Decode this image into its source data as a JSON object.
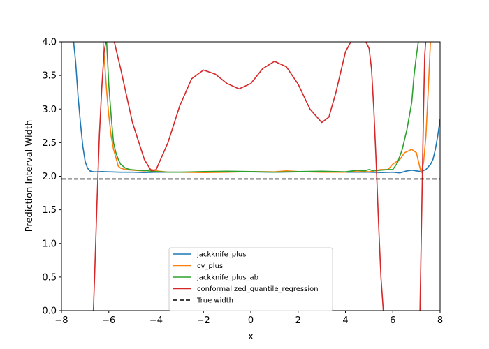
{
  "chart_data": {
    "type": "line",
    "title": "",
    "xlabel": "x",
    "ylabel": "Prediction Interval Width",
    "xlim": [
      -8,
      8
    ],
    "ylim": [
      0,
      4
    ],
    "xticks": [
      "−8",
      "−6",
      "−4",
      "−2",
      "0",
      "2",
      "4",
      "6",
      "8"
    ],
    "xtick_values": [
      -8,
      -6,
      -4,
      -2,
      0,
      2,
      4,
      6,
      8
    ],
    "yticks": [
      "0.0",
      "0.5",
      "1.0",
      "1.5",
      "2.0",
      "2.5",
      "3.0",
      "3.5",
      "4.0"
    ],
    "ytick_values": [
      0,
      0.5,
      1.0,
      1.5,
      2.0,
      2.5,
      3.0,
      3.5,
      4.0
    ],
    "grid": false,
    "legend_position": "lower-center",
    "series": [
      {
        "name": "jackknife_plus",
        "color": "#1f77b4",
        "style": "solid",
        "x": [
          -7.5,
          -7.4,
          -7.3,
          -7.2,
          -7.1,
          -7.0,
          -6.9,
          -6.8,
          -6.7,
          -6.6,
          -6.5,
          -6.3,
          -6.0,
          -5.5,
          -5.0,
          -4.5,
          -4.0,
          -3.0,
          -2.0,
          -1.0,
          0.0,
          1.0,
          2.0,
          3.0,
          4.0,
          5.0,
          5.5,
          6.0,
          6.3,
          6.6,
          6.8,
          7.0,
          7.2,
          7.4,
          7.6,
          7.7,
          7.8,
          7.9,
          8.0
        ],
        "y": [
          4.05,
          3.7,
          3.2,
          2.8,
          2.45,
          2.22,
          2.12,
          2.08,
          2.07,
          2.065,
          2.065,
          2.07,
          2.065,
          2.06,
          2.06,
          2.055,
          2.06,
          2.06,
          2.06,
          2.065,
          2.065,
          2.06,
          2.065,
          2.065,
          2.06,
          2.06,
          2.055,
          2.06,
          2.05,
          2.08,
          2.09,
          2.08,
          2.07,
          2.1,
          2.18,
          2.25,
          2.4,
          2.6,
          2.85
        ]
      },
      {
        "name": "cv_plus",
        "color": "#ff7f0e",
        "style": "solid",
        "x": [
          -6.25,
          -6.2,
          -6.1,
          -6.0,
          -5.9,
          -5.8,
          -5.7,
          -5.6,
          -5.5,
          -5.3,
          -5.0,
          -4.5,
          -4.2,
          -4.0,
          -3.5,
          -3.0,
          -2.0,
          -1.0,
          0.0,
          1.0,
          1.5,
          2.0,
          3.0,
          4.0,
          4.5,
          5.0,
          5.5,
          5.8,
          6.0,
          6.3,
          6.5,
          6.8,
          7.0,
          7.1,
          7.2,
          7.3,
          7.4,
          7.5,
          7.6
        ],
        "y": [
          4.05,
          3.8,
          3.3,
          2.9,
          2.6,
          2.4,
          2.28,
          2.15,
          2.12,
          2.1,
          2.09,
          2.08,
          2.1,
          2.08,
          2.06,
          2.06,
          2.055,
          2.06,
          2.07,
          2.065,
          2.08,
          2.07,
          2.06,
          2.06,
          2.08,
          2.065,
          2.1,
          2.1,
          2.18,
          2.25,
          2.35,
          2.4,
          2.35,
          2.2,
          2.05,
          2.2,
          2.6,
          3.3,
          4.05
        ]
      },
      {
        "name": "jackknife_plus_ab",
        "color": "#2ca02c",
        "style": "solid",
        "x": [
          -6.1,
          -6.0,
          -5.9,
          -5.8,
          -5.7,
          -5.6,
          -5.5,
          -5.3,
          -5.1,
          -4.8,
          -4.5,
          -4.0,
          -3.5,
          -3.0,
          -2.0,
          -1.0,
          0.0,
          1.0,
          2.0,
          3.0,
          4.0,
          4.5,
          4.8,
          5.0,
          5.2,
          5.5,
          5.8,
          6.0,
          6.2,
          6.4,
          6.6,
          6.8,
          6.9,
          7.0,
          7.1
        ],
        "y": [
          4.05,
          3.35,
          2.9,
          2.5,
          2.35,
          2.25,
          2.18,
          2.12,
          2.1,
          2.09,
          2.085,
          2.07,
          2.06,
          2.06,
          2.07,
          2.075,
          2.07,
          2.06,
          2.07,
          2.075,
          2.065,
          2.09,
          2.08,
          2.1,
          2.08,
          2.09,
          2.1,
          2.1,
          2.2,
          2.4,
          2.7,
          3.1,
          3.5,
          3.8,
          4.05
        ]
      },
      {
        "name": "conformalized_quantile_regression",
        "color": "#d62728",
        "style": "solid",
        "x": [
          -6.65,
          -6.6,
          -6.5,
          -6.4,
          -6.3,
          -6.2,
          -6.1,
          -6.0,
          -5.9,
          -5.8,
          -5.5,
          -5.0,
          -4.5,
          -4.2,
          -4.0,
          -3.5,
          -3.0,
          -2.5,
          -2.0,
          -1.5,
          -1.0,
          -0.5,
          0.0,
          0.5,
          1.0,
          1.5,
          2.0,
          2.5,
          3.0,
          3.3,
          3.6,
          4.0,
          4.3,
          4.5,
          4.8,
          5.0,
          5.1,
          5.2,
          5.3,
          5.4,
          5.5,
          5.6
        ],
        "y": [
          0.0,
          0.5,
          1.6,
          2.6,
          3.3,
          3.85,
          4.05,
          4.2,
          4.1,
          4.05,
          3.6,
          2.8,
          2.25,
          2.08,
          2.1,
          2.5,
          3.05,
          3.45,
          3.58,
          3.52,
          3.38,
          3.3,
          3.38,
          3.6,
          3.71,
          3.63,
          3.37,
          3.0,
          2.8,
          2.88,
          3.25,
          3.85,
          4.05,
          4.05,
          4.05,
          3.9,
          3.6,
          3.0,
          2.2,
          1.3,
          0.5,
          0.0
        ]
      },
      {
        "name": "conformalized_quantile_regression",
        "color": "#d62728",
        "style": "solid",
        "legend": false,
        "x": [
          7.15,
          7.2,
          7.25,
          7.3,
          7.35,
          7.4
        ],
        "y": [
          0.0,
          1.0,
          2.0,
          3.0,
          3.8,
          4.05
        ]
      },
      {
        "name": "True width",
        "color": "#000000",
        "style": "dashed",
        "x": [
          -8,
          8
        ],
        "y": [
          1.96,
          1.96
        ]
      }
    ]
  }
}
